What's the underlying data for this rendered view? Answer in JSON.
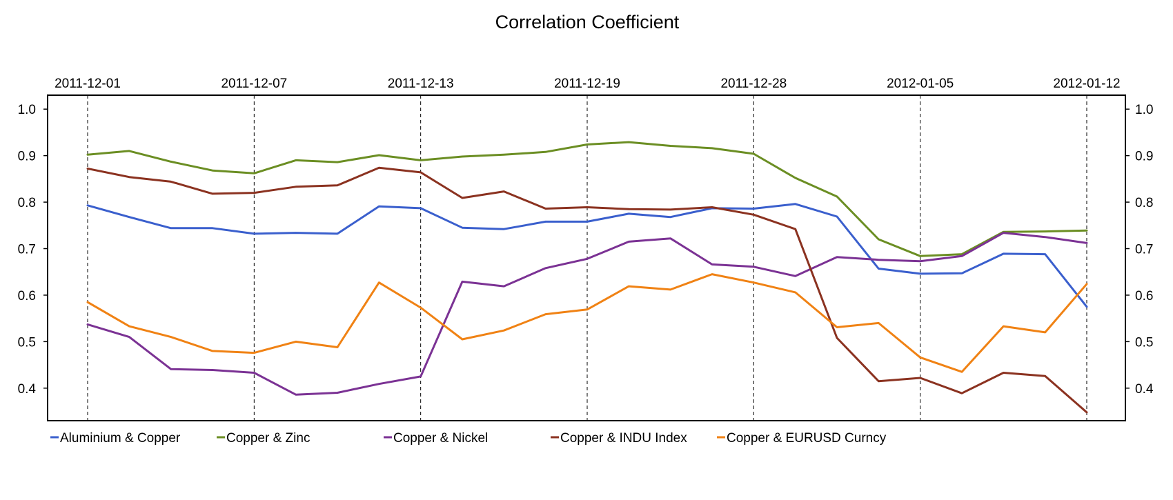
{
  "chart_data": {
    "type": "line",
    "title": "Correlation Coefficient",
    "xlabel": "",
    "ylabel": "",
    "x": [
      "2011-12-01",
      "2011-12-02",
      "2011-12-05",
      "2011-12-06",
      "2011-12-07",
      "2011-12-08",
      "2011-12-09",
      "2011-12-12",
      "2011-12-13",
      "2011-12-14",
      "2011-12-15",
      "2011-12-16",
      "2011-12-19",
      "2011-12-20",
      "2011-12-21",
      "2011-12-22",
      "2011-12-28",
      "2011-12-29",
      "2011-12-30",
      "2012-01-03",
      "2012-01-05",
      "2012-01-06",
      "2012-01-09",
      "2012-01-10",
      "2012-01-12"
    ],
    "x_tick_labels": [
      {
        "index": 0,
        "label": "2011-12-01"
      },
      {
        "index": 4,
        "label": "2011-12-07"
      },
      {
        "index": 8,
        "label": "2011-12-13"
      },
      {
        "index": 12,
        "label": "2011-12-19"
      },
      {
        "index": 16,
        "label": "2011-12-28"
      },
      {
        "index": 20,
        "label": "2012-01-05"
      },
      {
        "index": 24,
        "label": "2012-01-12"
      }
    ],
    "y_ticks": [
      "0.4",
      "0.5",
      "0.6",
      "0.7",
      "0.8",
      "0.9",
      "1.0"
    ],
    "ylim": [
      0.33,
      1.03
    ],
    "grid": "vertical dashed at labeled dates",
    "legend_position": "bottom",
    "series": [
      {
        "name": "Aluminium  &  Copper",
        "color": "#3A5FCD",
        "values": [
          0.793,
          0.768,
          0.744,
          0.744,
          0.732,
          0.734,
          0.732,
          0.791,
          0.787,
          0.745,
          0.742,
          0.758,
          0.758,
          0.775,
          0.768,
          0.787,
          0.786,
          0.796,
          0.769,
          0.657,
          0.646,
          0.647,
          0.689,
          0.688,
          0.575
        ]
      },
      {
        "name": "Copper  &  Zinc",
        "color": "#6B8E23",
        "values": [
          0.902,
          0.91,
          0.887,
          0.868,
          0.862,
          0.89,
          0.886,
          0.901,
          0.89,
          0.898,
          0.902,
          0.908,
          0.924,
          0.929,
          0.921,
          0.916,
          0.904,
          0.852,
          0.812,
          0.72,
          0.684,
          0.688,
          0.736,
          0.737,
          0.739
        ]
      },
      {
        "name": "Copper  &  Nickel",
        "color": "#7B3294",
        "values": [
          0.537,
          0.51,
          0.441,
          0.439,
          0.433,
          0.386,
          0.39,
          0.409,
          0.425,
          0.629,
          0.619,
          0.658,
          0.678,
          0.715,
          0.722,
          0.666,
          0.661,
          0.641,
          0.682,
          0.676,
          0.673,
          0.684,
          0.734,
          0.725,
          0.712
        ]
      },
      {
        "name": "Copper  &  INDU Index",
        "color": "#8B3220",
        "values": [
          0.872,
          0.854,
          0.844,
          0.818,
          0.82,
          0.833,
          0.836,
          0.874,
          0.864,
          0.809,
          0.823,
          0.786,
          0.789,
          0.785,
          0.784,
          0.789,
          0.773,
          0.742,
          0.508,
          0.415,
          0.422,
          0.389,
          0.433,
          0.426,
          0.348
        ]
      },
      {
        "name": "Copper  &  EURUSD Curncy",
        "color": "#F08214",
        "values": [
          0.585,
          0.533,
          0.51,
          0.48,
          0.476,
          0.5,
          0.488,
          0.627,
          0.573,
          0.505,
          0.524,
          0.559,
          0.569,
          0.619,
          0.612,
          0.645,
          0.627,
          0.606,
          0.531,
          0.54,
          0.466,
          0.435,
          0.533,
          0.52,
          0.624
        ]
      }
    ]
  }
}
